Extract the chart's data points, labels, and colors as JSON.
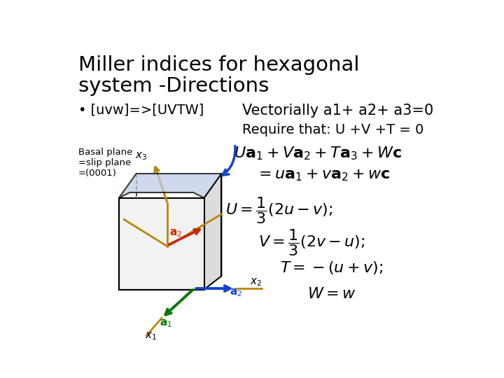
{
  "title_line1": "Miller indices for hexagonal",
  "title_line2": "system -Directions",
  "bullet": "• [uvw]=>[UVTW]",
  "vectorially": "Vectorially a1+ a2+ a3=0",
  "require": "Require that: U +V +T = 0",
  "bg_color": "#ffffff",
  "title_fontsize": 21,
  "body_fontsize": 13,
  "eq_fontsize": 14,
  "crystal_color_top": "#c8d4ee",
  "crystal_color_right": "#e8e8e8",
  "crystal_color_front": "#f0f0f0",
  "crystal_color_left": "#e0e0e0",
  "gold_color": "#b8860b",
  "blue_color": "#1144cc",
  "red_color": "#cc2200",
  "green_color": "#007700"
}
